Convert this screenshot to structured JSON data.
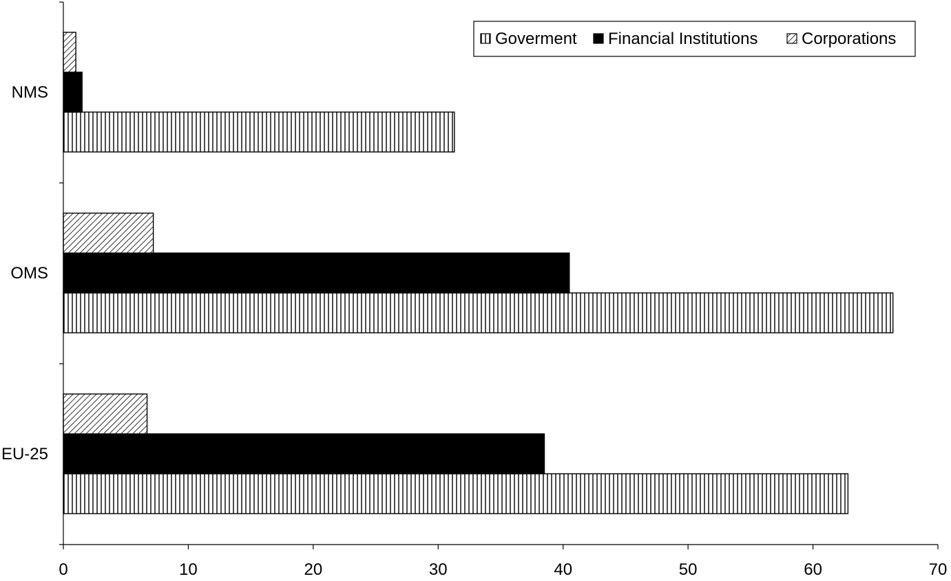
{
  "chart_data": {
    "type": "bar",
    "orientation": "horizontal",
    "categories": [
      "NMS",
      "OMS",
      "EU-25"
    ],
    "series": [
      {
        "name": "Goverment",
        "pattern": "vertical-stripes",
        "values": [
          31.3,
          66.4,
          62.8
        ]
      },
      {
        "name": "Financial Institutions",
        "pattern": "solid",
        "color": "#000000",
        "values": [
          1.5,
          40.5,
          38.5
        ]
      },
      {
        "name": "Corporations",
        "pattern": "diagonal-stripes",
        "values": [
          1.0,
          7.2,
          6.7
        ]
      }
    ],
    "x_ticks": [
      "0",
      "10",
      "20",
      "30",
      "40",
      "50",
      "60",
      "70"
    ],
    "xlim": [
      0,
      70
    ],
    "title": "",
    "xlabel": "",
    "ylabel": "",
    "grid": false,
    "legend": "top-right"
  }
}
